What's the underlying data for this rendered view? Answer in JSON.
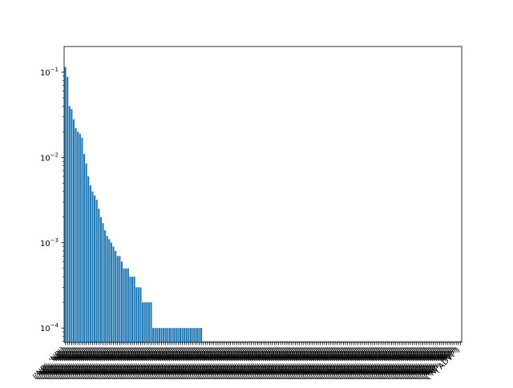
{
  "chart_data": {
    "type": "bar",
    "title": "",
    "xlabel": "",
    "ylabel": "",
    "yscale": "log",
    "ylim": [
      6.8e-05,
      0.2
    ],
    "grid": false,
    "legend": "none",
    "bar_color": "#1f77b4",
    "yticks": [
      {
        "value": 0.1,
        "base": "10",
        "exp": "−1"
      },
      {
        "value": 0.01,
        "base": "10",
        "exp": "−2"
      },
      {
        "value": 0.001,
        "base": "10",
        "exp": "−3"
      },
      {
        "value": 0.0001,
        "base": "10",
        "exp": "−4"
      }
    ],
    "visible_xtick_fragments": [
      "('NP', 'NP')",
      "('ADVP')"
    ],
    "category_count": 190,
    "values": [
      0.115,
      0.088,
      0.04,
      0.037,
      0.028,
      0.022,
      0.02,
      0.019,
      0.017,
      0.011,
      0.0085,
      0.006,
      0.0047,
      0.004,
      0.0036,
      0.0032,
      0.0025,
      0.002,
      0.0017,
      0.0014,
      0.0012,
      0.0011,
      0.001,
      0.0009,
      0.0008,
      0.0007,
      0.0007,
      0.0006,
      0.0005,
      0.0005,
      0.0005,
      0.0004,
      0.0004,
      0.0004,
      0.0003,
      0.0003,
      0.0003,
      0.0002,
      0.0002,
      0.0002,
      0.0002,
      0.0002,
      0.0001,
      0.0001,
      0.0001,
      0.0001,
      0.0001,
      0.0001,
      0.0001,
      0.0001,
      0.0001,
      0.0001,
      0.0001,
      0.0001,
      0.0001,
      0.0001,
      0.0001,
      0.0001,
      0.0001,
      0.0001,
      0.0001,
      0.0001,
      0.0001,
      0.0001,
      0.0001,
      0.0001,
      7e-05,
      7e-05,
      7e-05,
      7e-05,
      7e-05,
      7e-05,
      7e-05,
      7e-05,
      7e-05,
      7e-05,
      7e-05,
      7e-05,
      7e-05,
      7e-05,
      7e-05,
      7e-05,
      7e-05,
      7e-05,
      7e-05,
      7e-05,
      7e-05,
      7e-05,
      7e-05,
      7e-05,
      7e-05,
      7e-05,
      7e-05,
      7e-05,
      7e-05,
      7e-05,
      7e-05,
      7e-05,
      7e-05,
      7e-05,
      7e-05,
      7e-05,
      7e-05,
      7e-05,
      7e-05,
      7e-05,
      7e-05,
      7e-05,
      7e-05,
      7e-05,
      7e-05,
      7e-05,
      7e-05,
      7e-05,
      7e-05,
      7e-05,
      7e-05,
      7e-05,
      7e-05,
      7e-05,
      7e-05,
      7e-05,
      7e-05,
      7e-05,
      7e-05,
      7e-05,
      7e-05,
      7e-05,
      7e-05,
      7e-05,
      7e-05,
      7e-05,
      7e-05,
      7e-05,
      7e-05,
      7e-05,
      7e-05,
      7e-05,
      7e-05,
      7e-05,
      7e-05,
      7e-05,
      7e-05,
      7e-05,
      7e-05,
      7e-05,
      7e-05,
      7e-05,
      7e-05,
      7e-05,
      7e-05,
      7e-05,
      7e-05,
      7e-05,
      7e-05,
      7e-05,
      7e-05,
      7e-05,
      7e-05,
      7e-05,
      7e-05,
      7e-05,
      7e-05,
      7e-05,
      7e-05,
      7e-05,
      7e-05,
      7e-05,
      7e-05,
      7e-05,
      7e-05,
      7e-05,
      7e-05,
      7e-05,
      7e-05,
      7e-05,
      7e-05,
      7e-05,
      7e-05,
      7e-05,
      7e-05,
      7e-05,
      7e-05,
      7e-05,
      7e-05,
      7e-05,
      7e-05,
      7e-05,
      7e-05,
      7e-05
    ]
  }
}
